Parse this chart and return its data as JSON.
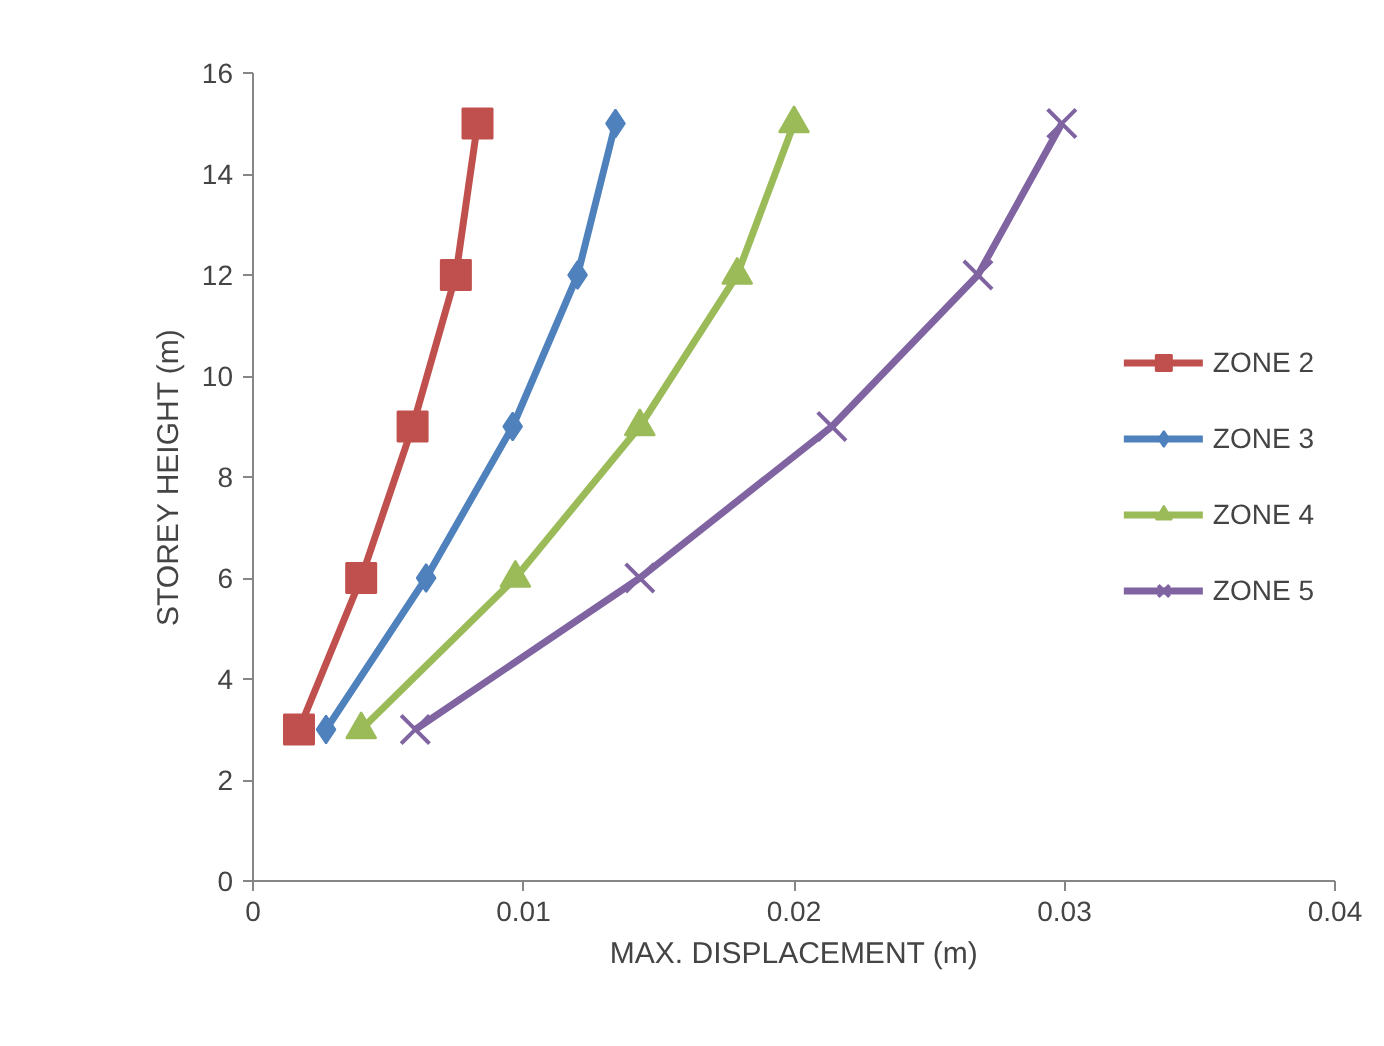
{
  "chart_data": {
    "type": "line",
    "xlabel": "MAX. DISPLACEMENT (m)",
    "ylabel": "STOREY HEIGHT (m)",
    "xlim": [
      0,
      0.04
    ],
    "xticks": [
      0,
      0.01,
      0.02,
      0.03,
      0.04
    ],
    "ylim": [
      0,
      16
    ],
    "yticks": [
      0,
      2,
      4,
      6,
      8,
      10,
      12,
      14,
      16
    ],
    "grid": false,
    "legend": "right",
    "series": [
      {
        "name": "ZONE 2",
        "color": "#c0504d",
        "marker": "square",
        "x": [
          0.0017,
          0.004,
          0.0059,
          0.0075,
          0.0083
        ],
        "values": [
          3,
          6,
          9,
          12,
          15
        ]
      },
      {
        "name": "ZONE 3",
        "color": "#4f81bd",
        "marker": "diamond",
        "x": [
          0.0027,
          0.0064,
          0.0096,
          0.012,
          0.0134
        ],
        "values": [
          3,
          6,
          9,
          12,
          15
        ]
      },
      {
        "name": "ZONE 4",
        "color": "#9bbb59",
        "marker": "triangle",
        "x": [
          0.004,
          0.0097,
          0.0143,
          0.0179,
          0.02
        ],
        "values": [
          3,
          6,
          9,
          12,
          15
        ]
      },
      {
        "name": "ZONE 5",
        "color": "#8064a2",
        "marker": "cross",
        "x": [
          0.006,
          0.0143,
          0.0214,
          0.0268,
          0.0299
        ],
        "values": [
          3,
          6,
          9,
          12,
          15
        ]
      }
    ]
  }
}
